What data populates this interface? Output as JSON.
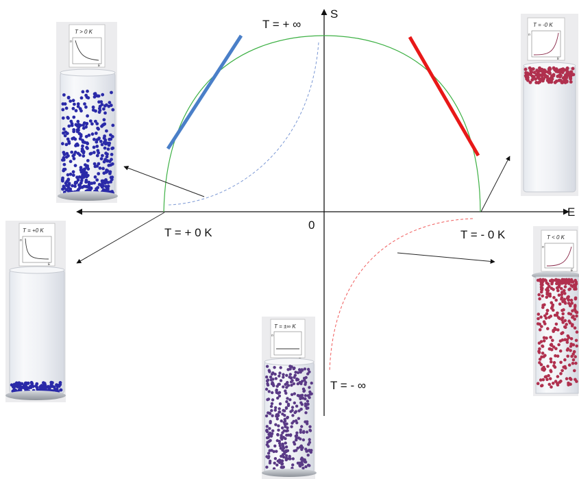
{
  "axes": {
    "entropy_label": "S",
    "energy_label": "E",
    "origin_label": "0"
  },
  "temperature_labels": {
    "plus_infinity": "T = + ∞",
    "plus_zero": "T = + 0 K",
    "minus_zero": "T = - 0 K",
    "minus_infinity": "T = - ∞"
  },
  "tubes": [
    {
      "id": "tube-positive-temperature",
      "card_label": "T > 0 K",
      "card_x_label": "E",
      "card_y_label": "n"
    },
    {
      "id": "tube-positive-zero",
      "card_label": "T = +0 K",
      "card_x_label": "E",
      "card_y_label": "n"
    },
    {
      "id": "tube-infinite-temperature",
      "card_label": "T = ±∞ K",
      "card_x_label": "E",
      "card_y_label": "n"
    },
    {
      "id": "tube-negative-zero",
      "card_label": "T = -0 K",
      "card_x_label": "E",
      "card_y_label": "n"
    },
    {
      "id": "tube-negative-temperature",
      "card_label": "T < 0 K",
      "card_x_label": "E",
      "card_y_label": "n"
    }
  ],
  "colors": {
    "entropy_curve": "#3cb043",
    "positive_tangent": "#4a7fc8",
    "negative_tangent": "#e81818",
    "positive_dashed": "#7a97d4",
    "negative_dashed": "#f05a5a",
    "cold_particles": "#2a2aa8",
    "hot_particles": "#b0304e",
    "infinite_particles": "#5a3a86"
  }
}
